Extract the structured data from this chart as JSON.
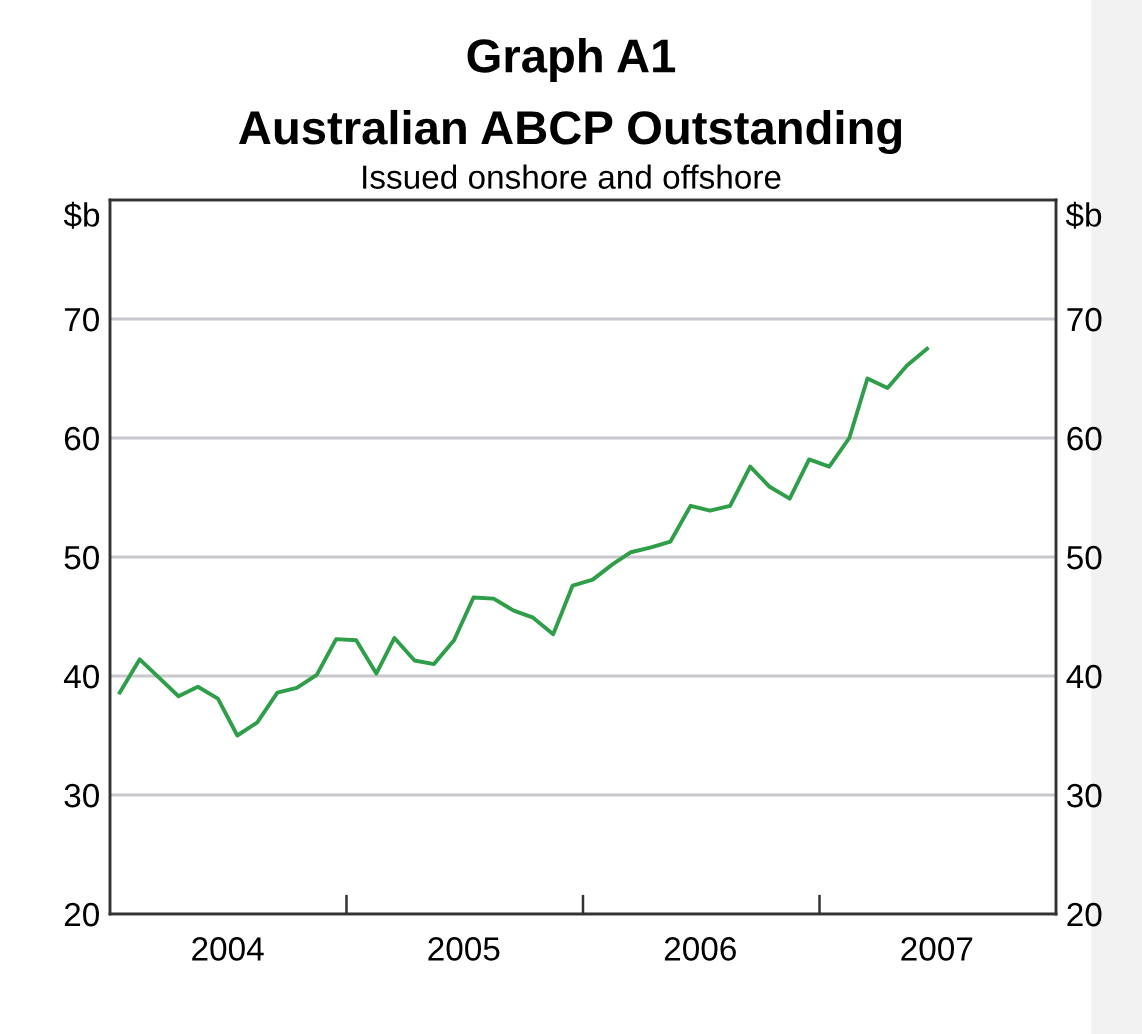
{
  "chart_data": {
    "type": "line",
    "title": "Graph A1\nAustralian ABCP Outstanding",
    "subtitle": "Issued onshore and offshore",
    "ylabel": "$b",
    "y2label": "$b",
    "x": [
      "2004-01-16",
      "2004-02-16",
      "2004-03-16",
      "2004-04-16",
      "2004-05-16",
      "2004-06-16",
      "2004-07-16",
      "2004-08-16",
      "2004-09-16",
      "2004-10-16",
      "2004-11-16",
      "2004-12-16",
      "2005-01-16",
      "2005-02-16",
      "2005-03-16",
      "2005-04-16",
      "2005-05-16",
      "2005-06-16",
      "2005-07-16",
      "2005-08-16",
      "2005-09-16",
      "2005-10-16",
      "2005-11-16",
      "2005-12-16",
      "2006-01-16",
      "2006-02-16",
      "2006-03-16",
      "2006-04-16",
      "2006-05-16",
      "2006-06-16",
      "2006-07-16",
      "2006-08-16",
      "2006-09-16",
      "2006-10-16",
      "2006-11-16",
      "2006-12-16",
      "2007-01-16",
      "2007-02-16",
      "2007-03-16",
      "2007-04-16",
      "2007-05-16",
      "2007-06-16"
    ],
    "series": [
      {
        "color": "#2e9e48",
        "values": [
          38.6,
          41.4,
          39.9,
          38.3,
          39.1,
          38.1,
          35.0,
          36.1,
          38.6,
          39.0,
          40.1,
          43.1,
          43.0,
          40.2,
          43.2,
          41.3,
          41.0,
          43.0,
          46.6,
          46.5,
          45.5,
          44.9,
          43.5,
          47.6,
          48.1,
          49.4,
          50.4,
          50.8,
          51.3,
          54.3,
          53.9,
          54.3,
          57.6,
          55.9,
          54.9,
          58.2,
          57.6,
          60.0,
          65.0,
          64.2,
          66.1,
          67.5
        ]
      }
    ],
    "xlim": [
      "2004-01",
      "2008-01"
    ],
    "xticks": [
      {
        "value": "2004-07",
        "label": "2004"
      },
      {
        "value": "2005-01",
        "label": null
      },
      {
        "value": "2005-07",
        "label": "2005"
      },
      {
        "value": "2006-01",
        "label": null
      },
      {
        "value": "2006-07",
        "label": "2006"
      },
      {
        "value": "2007-01",
        "label": null
      },
      {
        "value": "2007-07",
        "label": "2007"
      }
    ],
    "ylim": [
      20,
      80
    ],
    "yticks": [
      20,
      30,
      40,
      50,
      60,
      70
    ],
    "y2lim": [
      20,
      80
    ],
    "y2ticks": [
      20,
      30,
      40,
      50,
      60,
      70
    ],
    "grid": "y",
    "line_style": "solid",
    "marker": "none"
  }
}
